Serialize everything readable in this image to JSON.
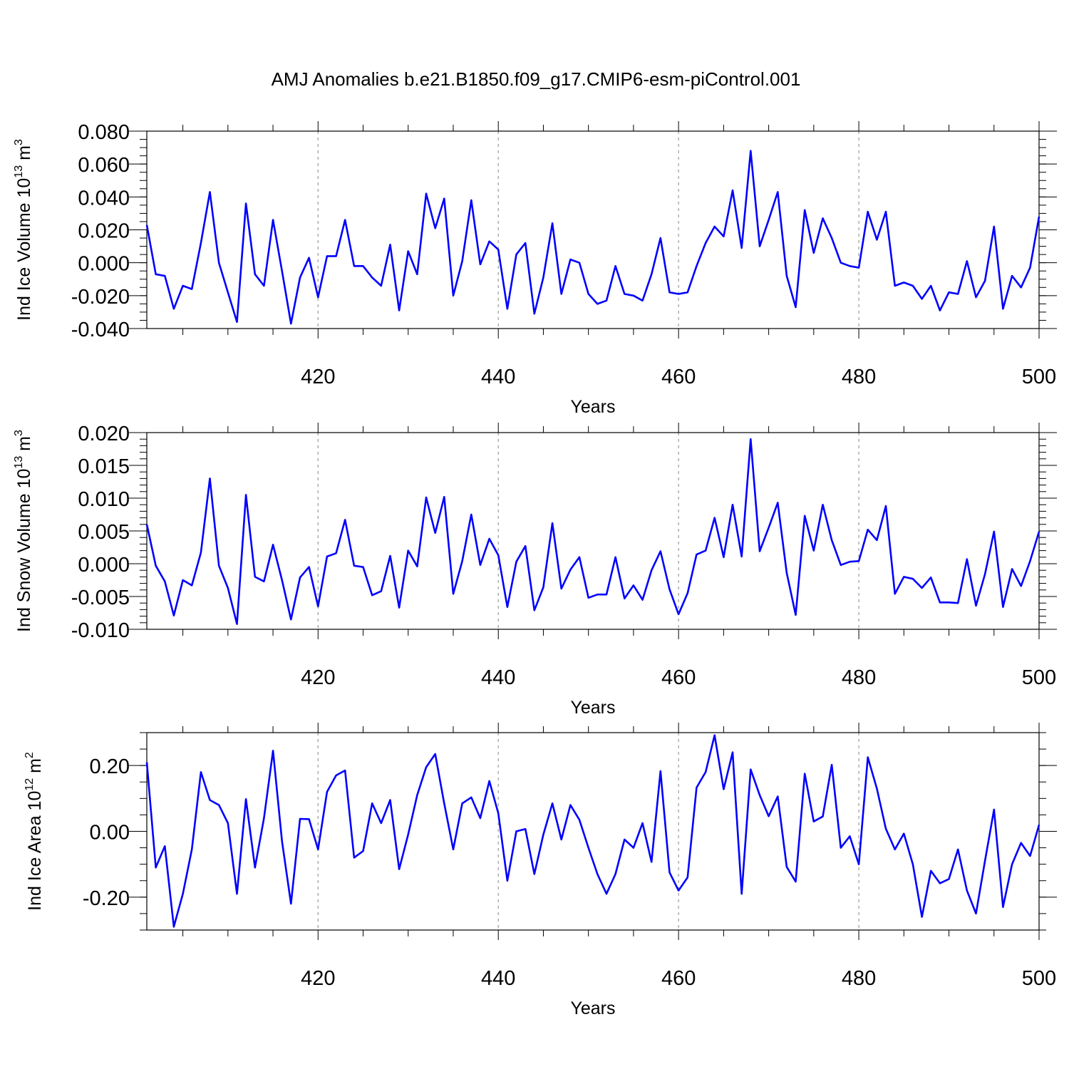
{
  "figure": {
    "title": "AMJ Anomalies b.e21.B1850.f09_g17.CMIP6-esm-piControl.001",
    "line_color": "#0000ff",
    "gridline_color": "#999999"
  },
  "chart_data": [
    {
      "type": "line",
      "name": "ice-volume",
      "ylabel": "Ind Ice Volume 10",
      "ylabel_sup": "13",
      "ylabel_unit": " m",
      "ylabel_unit_sup": "3",
      "xlabel": "Years",
      "xlim": [
        401,
        500
      ],
      "ylim": [
        -0.04,
        0.08
      ],
      "yticks": [
        -0.04,
        -0.02,
        0.0,
        0.02,
        0.04,
        0.06,
        0.08
      ],
      "yticklabels": [
        "-0.040",
        "-0.020",
        "0.000",
        "0.020",
        "0.040",
        "0.060",
        "0.080"
      ],
      "yminor": 0.005,
      "xticks": [
        420,
        440,
        460,
        480,
        500
      ],
      "xticklabels": [
        "420",
        "440",
        "460",
        "480",
        "500"
      ],
      "grid_x": [
        420,
        440,
        460,
        480
      ],
      "x_start": 401,
      "values": [
        0.023,
        -0.007,
        -0.008,
        -0.028,
        -0.014,
        -0.016,
        0.012,
        0.043,
        0.0,
        -0.018,
        -0.036,
        0.036,
        -0.007,
        -0.014,
        0.026,
        -0.005,
        -0.037,
        -0.009,
        0.003,
        -0.021,
        0.004,
        0.004,
        0.026,
        -0.002,
        -0.002,
        -0.009,
        -0.014,
        0.011,
        -0.029,
        0.007,
        -0.007,
        0.042,
        0.021,
        0.039,
        -0.02,
        0.001,
        0.038,
        -0.001,
        0.013,
        0.008,
        -0.028,
        0.005,
        0.012,
        -0.031,
        -0.009,
        0.024,
        -0.019,
        0.002,
        0.0,
        -0.019,
        -0.025,
        -0.023,
        -0.002,
        -0.019,
        -0.02,
        -0.023,
        -0.007,
        0.015,
        -0.018,
        -0.019,
        -0.018,
        -0.002,
        0.012,
        0.022,
        0.016,
        0.044,
        0.009,
        0.068,
        0.01,
        0.026,
        0.043,
        -0.008,
        -0.027,
        0.032,
        0.006,
        0.027,
        0.015,
        0.0,
        -0.002,
        -0.003,
        0.031,
        0.014,
        0.031,
        -0.014,
        -0.012,
        -0.014,
        -0.022,
        -0.014,
        -0.029,
        -0.018,
        -0.019,
        0.001,
        -0.021,
        -0.011,
        0.022,
        -0.028,
        -0.008,
        -0.015,
        -0.003,
        0.028
      ]
    },
    {
      "type": "line",
      "name": "snow-volume",
      "ylabel": "Ind Snow Volume 10",
      "ylabel_sup": "13",
      "ylabel_unit": " m",
      "ylabel_unit_sup": "3",
      "xlabel": "Years",
      "xlim": [
        401,
        500
      ],
      "ylim": [
        -0.01,
        0.02
      ],
      "yticks": [
        -0.01,
        -0.005,
        0.0,
        0.005,
        0.01,
        0.015,
        0.02
      ],
      "yticklabels": [
        "-0.010",
        "-0.005",
        "0.000",
        "0.005",
        "0.010",
        "0.015",
        "0.020"
      ],
      "yminor": 0.001,
      "xticks": [
        420,
        440,
        460,
        480,
        500
      ],
      "xticklabels": [
        "420",
        "440",
        "460",
        "480",
        "500"
      ],
      "grid_x": [
        420,
        440,
        460,
        480
      ],
      "x_start": 401,
      "values": [
        0.006,
        -0.0003,
        -0.0027,
        -0.0079,
        -0.0025,
        -0.0033,
        0.0017,
        0.013,
        -0.0003,
        -0.0037,
        -0.0092,
        0.0105,
        -0.002,
        -0.0027,
        0.0029,
        -0.0025,
        -0.0085,
        -0.0021,
        -0.0005,
        -0.0065,
        0.0011,
        0.0016,
        0.0067,
        -0.0003,
        -0.0005,
        -0.0048,
        -0.0042,
        0.0012,
        -0.0067,
        0.002,
        -0.0004,
        0.0101,
        0.0047,
        0.0102,
        -0.0046,
        0.0004,
        0.0075,
        -0.0002,
        0.0038,
        0.0013,
        -0.0066,
        0.0003,
        0.0027,
        -0.0071,
        -0.0036,
        0.0062,
        -0.0038,
        -0.0009,
        0.001,
        -0.0052,
        -0.0047,
        -0.0047,
        0.001,
        -0.0053,
        -0.0033,
        -0.0055,
        -0.001,
        0.0019,
        -0.0039,
        -0.0077,
        -0.0045,
        0.0014,
        0.002,
        0.007,
        0.001,
        0.009,
        0.0011,
        0.019,
        0.0019,
        0.0055,
        0.0093,
        -0.0014,
        -0.0078,
        0.0073,
        0.002,
        0.009,
        0.0036,
        -0.0002,
        0.0003,
        0.0004,
        0.0052,
        0.0036,
        0.0088,
        -0.0046,
        -0.002,
        -0.0023,
        -0.0037,
        -0.0021,
        -0.0059,
        -0.0059,
        -0.006,
        0.0007,
        -0.0064,
        -0.0016,
        0.0049,
        -0.0066,
        -0.0008,
        -0.0034,
        0.0004,
        0.0049
      ]
    },
    {
      "type": "line",
      "name": "ice-area",
      "ylabel": "Ind Ice Area 10",
      "ylabel_sup": "12",
      "ylabel_unit": " m",
      "ylabel_unit_sup": "2",
      "xlabel": "Years",
      "xlim": [
        401,
        500
      ],
      "ylim": [
        -0.3,
        0.3
      ],
      "yticks": [
        -0.2,
        0.0,
        0.2
      ],
      "yticklabels": [
        "-0.20",
        "0.00",
        "0.20"
      ],
      "yminor": 0.05,
      "xticks": [
        420,
        440,
        460,
        480,
        500
      ],
      "xticklabels": [
        "420",
        "440",
        "460",
        "480",
        "500"
      ],
      "grid_x": [
        420,
        440,
        460,
        480
      ],
      "x_start": 401,
      "values": [
        0.21,
        -0.11,
        -0.045,
        -0.29,
        -0.19,
        -0.055,
        0.18,
        0.095,
        0.08,
        0.025,
        -0.19,
        0.098,
        -0.11,
        0.04,
        0.245,
        -0.03,
        -0.22,
        0.038,
        0.037,
        -0.055,
        0.12,
        0.17,
        0.185,
        -0.08,
        -0.06,
        0.085,
        0.025,
        0.095,
        -0.115,
        -0.01,
        0.11,
        0.195,
        0.235,
        0.085,
        -0.055,
        0.085,
        0.103,
        0.04,
        0.153,
        0.055,
        -0.15,
        0.0,
        0.007,
        -0.13,
        -0.01,
        0.085,
        -0.025,
        0.08,
        0.035,
        -0.05,
        -0.13,
        -0.19,
        -0.13,
        -0.025,
        -0.05,
        0.025,
        -0.093,
        0.183,
        -0.125,
        -0.18,
        -0.14,
        0.133,
        0.18,
        0.292,
        0.128,
        0.24,
        -0.19,
        0.188,
        0.11,
        0.046,
        0.106,
        -0.108,
        -0.153,
        0.175,
        0.03,
        0.045,
        0.202,
        -0.05,
        -0.015,
        -0.1,
        0.225,
        0.13,
        0.008,
        -0.055,
        -0.007,
        -0.1,
        -0.26,
        -0.12,
        -0.158,
        -0.145,
        -0.055,
        -0.18,
        -0.25,
        -0.09,
        0.066,
        -0.23,
        -0.1,
        -0.035,
        -0.075,
        0.02
      ]
    }
  ]
}
